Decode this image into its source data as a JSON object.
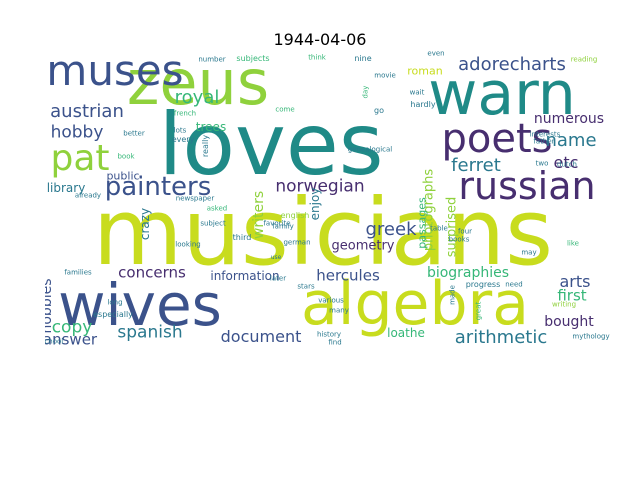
{
  "title": "1944-04-06",
  "colors": {
    "yellow": "#c8dc1e",
    "lime": "#8fd13c",
    "teal": "#1f8a87",
    "blue": "#3b528b",
    "navy": "#472e6f",
    "green": "#36b778",
    "cyan": "#2a788e"
  },
  "words": [
    {
      "text": "musicians",
      "color": "yellow"
    },
    {
      "text": "loves",
      "color": "teal"
    },
    {
      "text": "algebra",
      "color": "yellow"
    },
    {
      "text": "wives",
      "color": "blue"
    },
    {
      "text": "zeus",
      "color": "lime"
    },
    {
      "text": "warn",
      "color": "teal"
    },
    {
      "text": "muses",
      "color": "blue"
    },
    {
      "text": "poets",
      "color": "navy"
    },
    {
      "text": "russian",
      "color": "navy"
    },
    {
      "text": "pat",
      "color": "lime"
    },
    {
      "text": "painters",
      "color": "blue"
    },
    {
      "text": "adorecharts",
      "color": "blue"
    },
    {
      "text": "austrian",
      "color": "blue"
    },
    {
      "text": "royal",
      "color": "green"
    },
    {
      "text": "hobby",
      "color": "blue"
    },
    {
      "text": "answer",
      "color": "blue"
    },
    {
      "text": "name",
      "color": "cyan"
    },
    {
      "text": "numerous",
      "color": "navy"
    },
    {
      "text": "ferret",
      "color": "cyan"
    },
    {
      "text": "etc",
      "color": "navy"
    },
    {
      "text": "norwegian",
      "color": "navy"
    },
    {
      "text": "greek",
      "color": "blue"
    },
    {
      "text": "geometry",
      "color": "navy"
    },
    {
      "text": "hercules",
      "color": "blue"
    },
    {
      "text": "concerns",
      "color": "navy"
    },
    {
      "text": "information",
      "color": "blue"
    },
    {
      "text": "biographies",
      "color": "green"
    },
    {
      "text": "arts",
      "color": "blue"
    },
    {
      "text": "first",
      "color": "green"
    },
    {
      "text": "copy",
      "color": "green"
    },
    {
      "text": "spanish",
      "color": "cyan"
    },
    {
      "text": "document",
      "color": "blue"
    },
    {
      "text": "arithmetic",
      "color": "cyan"
    },
    {
      "text": "bought",
      "color": "navy"
    },
    {
      "text": "loathe",
      "color": "green"
    },
    {
      "text": "library",
      "color": "cyan"
    },
    {
      "text": "hobbies",
      "color": "blue"
    },
    {
      "text": "trees",
      "color": "green"
    },
    {
      "text": "public",
      "color": "blue"
    },
    {
      "text": "enjoy",
      "color": "cyan"
    },
    {
      "text": "writers",
      "color": "lime"
    },
    {
      "text": "crazy",
      "color": "cyan"
    },
    {
      "text": "photographs",
      "color": "lime"
    },
    {
      "text": "passages",
      "color": "green"
    },
    {
      "text": "surprised",
      "color": "lime"
    },
    {
      "text": "roman",
      "color": "yellow"
    },
    {
      "text": "especially",
      "color": "cyan"
    },
    {
      "text": "subjects",
      "color": "green"
    },
    {
      "text": "think",
      "color": "green"
    },
    {
      "text": "nine",
      "color": "cyan"
    },
    {
      "text": "even",
      "color": "cyan"
    },
    {
      "text": "number",
      "color": "cyan"
    },
    {
      "text": "notes",
      "color": "cyan"
    },
    {
      "text": "reading",
      "color": "lime"
    },
    {
      "text": "movie",
      "color": "cyan"
    },
    {
      "text": "wait",
      "color": "cyan"
    },
    {
      "text": "hardly",
      "color": "cyan"
    },
    {
      "text": "father",
      "color": "cyan"
    },
    {
      "text": "interests",
      "color": "cyan"
    },
    {
      "text": "french",
      "color": "green"
    },
    {
      "text": "better",
      "color": "cyan"
    },
    {
      "text": "lots",
      "color": "cyan"
    },
    {
      "text": "every",
      "color": "cyan"
    },
    {
      "text": "really",
      "color": "cyan"
    },
    {
      "text": "genealogical",
      "color": "cyan"
    },
    {
      "text": "day",
      "color": "green"
    },
    {
      "text": "go",
      "color": "cyan"
    },
    {
      "text": "come",
      "color": "green"
    },
    {
      "text": "book",
      "color": "green"
    },
    {
      "text": "two",
      "color": "cyan"
    },
    {
      "text": "dutch",
      "color": "cyan"
    },
    {
      "text": "already",
      "color": "cyan"
    },
    {
      "text": "newspaper",
      "color": "cyan"
    },
    {
      "text": "asked",
      "color": "green"
    },
    {
      "text": "favorite",
      "color": "cyan"
    },
    {
      "text": "english",
      "color": "lime"
    },
    {
      "text": "subject",
      "color": "cyan"
    },
    {
      "text": "third",
      "color": "cyan"
    },
    {
      "text": "family",
      "color": "cyan"
    },
    {
      "text": "looking",
      "color": "cyan"
    },
    {
      "text": "german",
      "color": "cyan"
    },
    {
      "text": "table",
      "color": "cyan"
    },
    {
      "text": "four",
      "color": "cyan"
    },
    {
      "text": "books",
      "color": "cyan"
    },
    {
      "text": "may",
      "color": "cyan"
    },
    {
      "text": "like",
      "color": "green"
    },
    {
      "text": "families",
      "color": "cyan"
    },
    {
      "text": "use",
      "color": "cyan"
    },
    {
      "text": "later",
      "color": "cyan"
    },
    {
      "text": "stars",
      "color": "cyan"
    },
    {
      "text": "various",
      "color": "cyan"
    },
    {
      "text": "long",
      "color": "cyan"
    },
    {
      "text": "made",
      "color": "cyan"
    },
    {
      "text": "great",
      "color": "green"
    },
    {
      "text": "writing",
      "color": "lime"
    },
    {
      "text": "many",
      "color": "cyan"
    },
    {
      "text": "progress",
      "color": "cyan"
    },
    {
      "text": "need",
      "color": "cyan"
    },
    {
      "text": "school",
      "color": "cyan"
    },
    {
      "text": "history",
      "color": "cyan"
    },
    {
      "text": "find",
      "color": "cyan"
    },
    {
      "text": "mythology",
      "color": "cyan"
    }
  ]
}
